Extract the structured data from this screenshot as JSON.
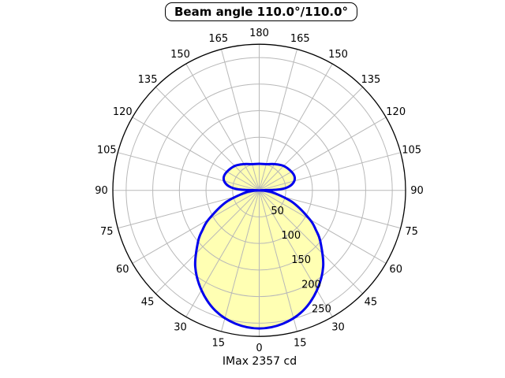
{
  "title": {
    "text": "Beam angle 110.0°/110.0°"
  },
  "footer": {
    "text": "IMax 2357 cd"
  },
  "chart_data": {
    "type": "polar",
    "title": "Beam angle 110.0°/110.0°",
    "caption": "IMax 2357 cd",
    "beam_angle_deg": [
      110.0,
      110.0
    ],
    "imax_cd": 2357,
    "angle_ticks_deg": [
      0,
      15,
      30,
      45,
      60,
      75,
      90,
      105,
      120,
      135,
      150,
      165,
      180
    ],
    "angle_labels_mirrored": true,
    "radial_ticks": [
      50,
      100,
      150,
      200,
      250
    ],
    "radial_axis_max": 275,
    "radial_label_angle_deg": 22.5,
    "grid_angle_step_deg": 15,
    "grid_on": true,
    "colors": {
      "grid": "#b8b8b8",
      "axis": "#000000",
      "curve": "#0000ee",
      "fill": "#ffffb3",
      "text": "#000000"
    },
    "profile_deg_r": [
      [
        0,
        260
      ],
      [
        10,
        255
      ],
      [
        20,
        241
      ],
      [
        30,
        217
      ],
      [
        40,
        187
      ],
      [
        50,
        150
      ],
      [
        55,
        130
      ],
      [
        60,
        110
      ],
      [
        70,
        68
      ],
      [
        80,
        29
      ],
      [
        85,
        12
      ],
      [
        90,
        0
      ],
      [
        92,
        33
      ],
      [
        96,
        53
      ],
      [
        102,
        65
      ],
      [
        110,
        71
      ],
      [
        120,
        70
      ],
      [
        135,
        65
      ],
      [
        150,
        57
      ],
      [
        165,
        51
      ],
      [
        180,
        50
      ]
    ],
    "profile_symmetric": true
  }
}
